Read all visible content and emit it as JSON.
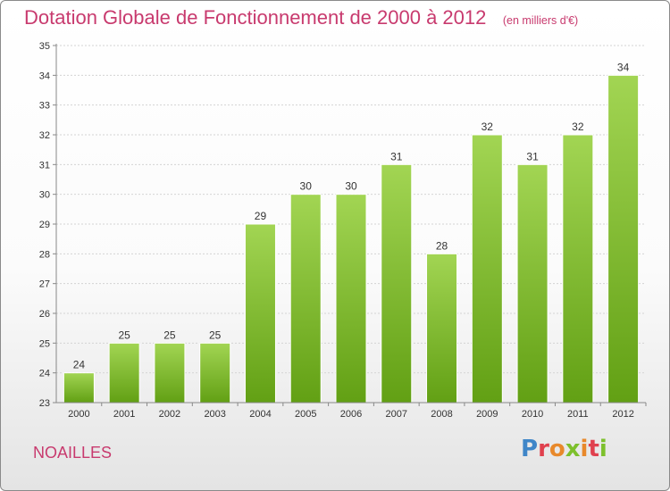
{
  "header": {
    "title": "Dotation Globale de Fonctionnement de 2000 à 2012",
    "unit": "(en milliers d'€)"
  },
  "footer": {
    "commune": "NOAILLES",
    "logo": "Proxiti"
  },
  "colors": {
    "accent": "#c83a6e",
    "bar_top": "#a2d553",
    "bar_bottom": "#62a014"
  },
  "chart_data": {
    "type": "bar",
    "title": "Dotation Globale de Fonctionnement de 2000 à 2012",
    "subtitle": "(en milliers d'€)",
    "categories": [
      "2000",
      "2001",
      "2002",
      "2003",
      "2004",
      "2005",
      "2006",
      "2007",
      "2008",
      "2009",
      "2010",
      "2011",
      "2012"
    ],
    "values": [
      24,
      25,
      25,
      25,
      29,
      30,
      30,
      31,
      28,
      32,
      31,
      32,
      34
    ],
    "ylim": [
      23,
      35
    ],
    "yticks": [
      23,
      24,
      25,
      26,
      27,
      28,
      29,
      30,
      31,
      32,
      33,
      34,
      35
    ],
    "grid": true,
    "legend": "none"
  }
}
